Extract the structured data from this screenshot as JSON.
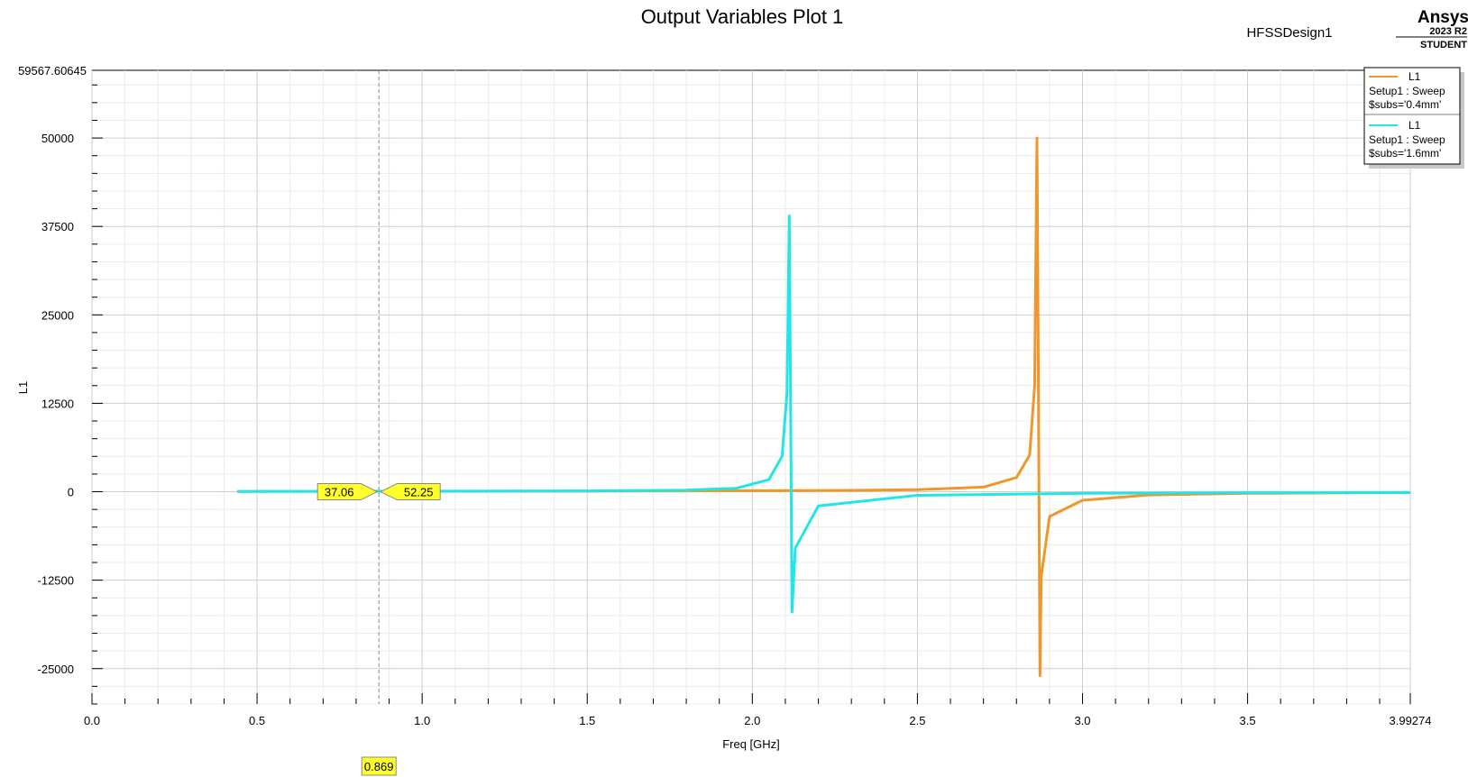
{
  "header": {
    "title": "Output Variables Plot 1",
    "design_name": "HFSSDesign1",
    "brand": "Ansys",
    "version": "2023 R2",
    "edition": "STUDENT"
  },
  "chart_data": {
    "type": "line",
    "title": "Output Variables Plot 1",
    "xlabel": "Freq [GHz]",
    "ylabel": "L1",
    "xlim": [
      0.0,
      3.99274
    ],
    "ylim": [
      -30000,
      59567.60645
    ],
    "x_ticks": [
      0.0,
      0.5,
      1.0,
      1.5,
      2.0,
      2.5,
      3.0,
      3.5,
      3.99274
    ],
    "x_tick_labels": [
      "0.0",
      "0.5",
      "1.0",
      "1.5",
      "2.0",
      "2.5",
      "3.0",
      "3.5",
      "3.99274"
    ],
    "y_ticks": [
      50000,
      37500,
      25000,
      12500,
      0,
      -12500,
      -25000
    ],
    "y_tick_labels": [
      "50000",
      "37500",
      "25000",
      "12500",
      "0",
      "-12500",
      "-25000"
    ],
    "y_max_label": "59567.60645",
    "grid": true,
    "legend_position": "top-right",
    "series": [
      {
        "legend_name": "L1",
        "legend_lines": [
          "Setup1 : Sweep",
          "$subs='0.4mm'"
        ],
        "color": "#f0962a",
        "resonance_ghz": 2.868,
        "amplitude": 280,
        "points": [
          [
            0.44,
            37
          ],
          [
            1.0,
            55
          ],
          [
            1.5,
            80
          ],
          [
            2.0,
            140
          ],
          [
            2.3,
            200
          ],
          [
            2.5,
            290
          ],
          [
            2.7,
            650
          ],
          [
            2.8,
            2000
          ],
          [
            2.84,
            5200
          ],
          [
            2.855,
            15000
          ],
          [
            2.862,
            50000
          ],
          [
            2.866,
            20000
          ],
          [
            2.871,
            -26000
          ],
          [
            2.875,
            -12000
          ],
          [
            2.9,
            -3500
          ],
          [
            3.0,
            -1200
          ],
          [
            3.2,
            -450
          ],
          [
            3.5,
            -220
          ],
          [
            3.99274,
            -120
          ]
        ]
      },
      {
        "legend_name": "L1",
        "legend_lines": [
          "Setup1 : Sweep",
          "$subs='1.6mm'"
        ],
        "color": "#22e5e8",
        "resonance_ghz": 2.118,
        "amplitude": 160,
        "points": [
          [
            0.44,
            52
          ],
          [
            1.0,
            75
          ],
          [
            1.5,
            120
          ],
          [
            1.8,
            230
          ],
          [
            1.95,
            480
          ],
          [
            2.05,
            1700
          ],
          [
            2.09,
            5000
          ],
          [
            2.105,
            14000
          ],
          [
            2.112,
            39000
          ],
          [
            2.116,
            12000
          ],
          [
            2.12,
            -17000
          ],
          [
            2.13,
            -8000
          ],
          [
            2.2,
            -2000
          ],
          [
            2.5,
            -500
          ],
          [
            3.0,
            -230
          ],
          [
            3.5,
            -140
          ],
          [
            3.99274,
            -110
          ]
        ]
      }
    ],
    "marker": {
      "x": 0.869,
      "x_label": "0.869",
      "values": [
        {
          "text": "37.06",
          "series": 0
        },
        {
          "text": "52.25",
          "series": 1
        }
      ]
    }
  }
}
